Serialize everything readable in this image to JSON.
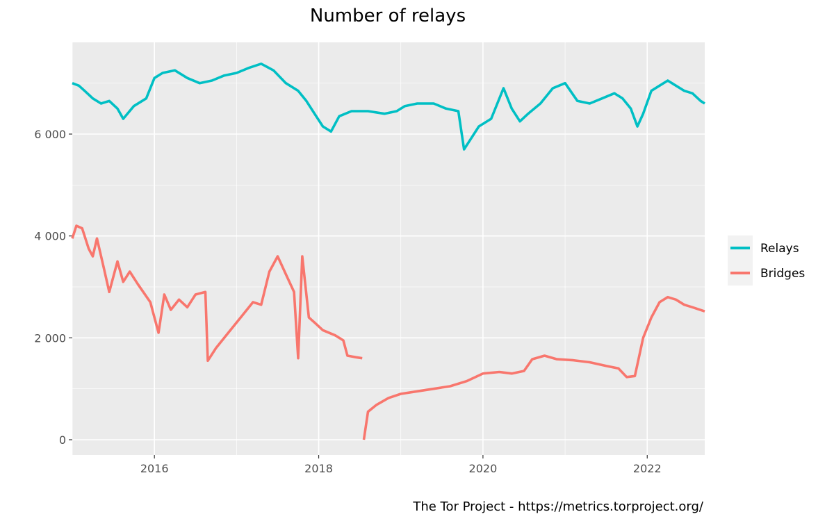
{
  "chart_data": {
    "type": "line",
    "title": "Number of relays",
    "xlabel": "",
    "ylabel": "",
    "caption": "The Tor Project - https://metrics.torproject.org/",
    "x_range": [
      2015.0,
      2022.7
    ],
    "ylim": [
      -300,
      7800
    ],
    "x_ticks": [
      2016,
      2018,
      2020,
      2022
    ],
    "x_tick_labels": [
      "2016",
      "2018",
      "2020",
      "2022"
    ],
    "y_ticks": [
      0,
      2000,
      4000,
      6000
    ],
    "y_tick_labels": [
      "0",
      "2 000",
      "4 000",
      "6 000"
    ],
    "grid": true,
    "legend_position": "right",
    "series": [
      {
        "name": "Relays",
        "color": "#00BFC4",
        "points": [
          [
            2015.0,
            7000
          ],
          [
            2015.08,
            6950
          ],
          [
            2015.15,
            6850
          ],
          [
            2015.25,
            6700
          ],
          [
            2015.35,
            6600
          ],
          [
            2015.45,
            6650
          ],
          [
            2015.55,
            6500
          ],
          [
            2015.62,
            6300
          ],
          [
            2015.75,
            6550
          ],
          [
            2015.9,
            6700
          ],
          [
            2016.0,
            7100
          ],
          [
            2016.1,
            7200
          ],
          [
            2016.25,
            7250
          ],
          [
            2016.4,
            7100
          ],
          [
            2016.55,
            7000
          ],
          [
            2016.7,
            7050
          ],
          [
            2016.85,
            7150
          ],
          [
            2017.0,
            7200
          ],
          [
            2017.15,
            7300
          ],
          [
            2017.3,
            7380
          ],
          [
            2017.45,
            7250
          ],
          [
            2017.6,
            7000
          ],
          [
            2017.75,
            6850
          ],
          [
            2017.85,
            6650
          ],
          [
            2017.95,
            6400
          ],
          [
            2018.05,
            6150
          ],
          [
            2018.15,
            6050
          ],
          [
            2018.25,
            6350
          ],
          [
            2018.4,
            6450
          ],
          [
            2018.6,
            6450
          ],
          [
            2018.8,
            6400
          ],
          [
            2018.95,
            6450
          ],
          [
            2019.05,
            6550
          ],
          [
            2019.2,
            6600
          ],
          [
            2019.4,
            6600
          ],
          [
            2019.55,
            6500
          ],
          [
            2019.7,
            6450
          ],
          [
            2019.77,
            5700
          ],
          [
            2019.85,
            5900
          ],
          [
            2019.95,
            6150
          ],
          [
            2020.1,
            6300
          ],
          [
            2020.25,
            6900
          ],
          [
            2020.35,
            6500
          ],
          [
            2020.45,
            6250
          ],
          [
            2020.55,
            6400
          ],
          [
            2020.7,
            6600
          ],
          [
            2020.85,
            6900
          ],
          [
            2021.0,
            7000
          ],
          [
            2021.15,
            6650
          ],
          [
            2021.3,
            6600
          ],
          [
            2021.45,
            6700
          ],
          [
            2021.6,
            6800
          ],
          [
            2021.7,
            6700
          ],
          [
            2021.8,
            6500
          ],
          [
            2021.88,
            6150
          ],
          [
            2021.95,
            6400
          ],
          [
            2022.05,
            6850
          ],
          [
            2022.15,
            6950
          ],
          [
            2022.25,
            7050
          ],
          [
            2022.35,
            6950
          ],
          [
            2022.45,
            6850
          ],
          [
            2022.55,
            6800
          ],
          [
            2022.65,
            6650
          ],
          [
            2022.7,
            6600
          ]
        ]
      },
      {
        "name": "Bridges",
        "color": "#F8766D",
        "points": [
          [
            2015.0,
            3950
          ],
          [
            2015.05,
            4200
          ],
          [
            2015.12,
            4150
          ],
          [
            2015.2,
            3750
          ],
          [
            2015.25,
            3600
          ],
          [
            2015.3,
            3950
          ],
          [
            2015.38,
            3400
          ],
          [
            2015.45,
            2900
          ],
          [
            2015.55,
            3500
          ],
          [
            2015.62,
            3100
          ],
          [
            2015.7,
            3300
          ],
          [
            2015.8,
            3050
          ],
          [
            2015.95,
            2700
          ],
          [
            2016.05,
            2100
          ],
          [
            2016.12,
            2850
          ],
          [
            2016.2,
            2550
          ],
          [
            2016.3,
            2750
          ],
          [
            2016.4,
            2600
          ],
          [
            2016.5,
            2850
          ],
          [
            2016.62,
            2900
          ],
          [
            2016.65,
            1550
          ],
          [
            2016.75,
            1800
          ],
          [
            2016.9,
            2100
          ],
          [
            2017.05,
            2400
          ],
          [
            2017.2,
            2700
          ],
          [
            2017.3,
            2650
          ],
          [
            2017.4,
            3300
          ],
          [
            2017.5,
            3600
          ],
          [
            2017.6,
            3250
          ],
          [
            2017.7,
            2900
          ],
          [
            2017.75,
            1600
          ],
          [
            2017.8,
            3600
          ],
          [
            2017.88,
            2400
          ],
          [
            2017.95,
            2300
          ],
          [
            2018.05,
            2150
          ],
          [
            2018.2,
            2050
          ],
          [
            2018.3,
            1950
          ],
          [
            2018.35,
            1650
          ],
          [
            2018.45,
            1620
          ],
          [
            2018.53,
            1600
          ],
          [
            2018.55,
            null
          ],
          [
            2018.55,
            0
          ],
          [
            2018.6,
            550
          ],
          [
            2018.7,
            680
          ],
          [
            2018.85,
            820
          ],
          [
            2019.0,
            900
          ],
          [
            2019.2,
            950
          ],
          [
            2019.4,
            1000
          ],
          [
            2019.6,
            1050
          ],
          [
            2019.8,
            1150
          ],
          [
            2020.0,
            1300
          ],
          [
            2020.2,
            1330
          ],
          [
            2020.35,
            1300
          ],
          [
            2020.5,
            1350
          ],
          [
            2020.6,
            1580
          ],
          [
            2020.75,
            1650
          ],
          [
            2020.9,
            1580
          ],
          [
            2021.1,
            1560
          ],
          [
            2021.3,
            1520
          ],
          [
            2021.5,
            1450
          ],
          [
            2021.65,
            1400
          ],
          [
            2021.75,
            1230
          ],
          [
            2021.85,
            1250
          ],
          [
            2021.95,
            2000
          ],
          [
            2022.05,
            2400
          ],
          [
            2022.15,
            2700
          ],
          [
            2022.25,
            2800
          ],
          [
            2022.35,
            2750
          ],
          [
            2022.45,
            2650
          ],
          [
            2022.55,
            2600
          ],
          [
            2022.7,
            2520
          ]
        ]
      }
    ]
  }
}
